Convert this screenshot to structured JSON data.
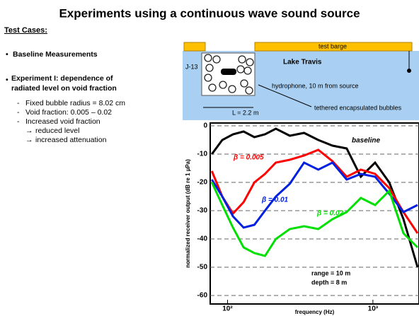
{
  "slide": {
    "title": "Experiments using a continuous wave sound source",
    "subtitle": "Test Cases:",
    "items": [
      "Baseline Measurements",
      "Experiment I:  dependence of radiated level on void fraction"
    ],
    "subitems": [
      "Fixed bubble radius = 8.02 cm",
      "Void fraction: 0.005 – 0.02",
      "Increased void fraction"
    ],
    "effects": [
      "reduced level",
      "increased attenuation"
    ]
  },
  "diagram": {
    "barge": "test barge",
    "lake": "Lake Travis",
    "source": "J-13",
    "hydrophone": "hydrophone, 10 m from source",
    "bubbles": "tethered encapsulated bubbles",
    "length": "L = 2.2 m"
  },
  "chart_data": {
    "type": "line",
    "xlabel": "frequency (Hz)",
    "ylabel": "normalized receiver output (dB re 1 µPa)",
    "log_x": true,
    "grid": true,
    "x": [
      78,
      92,
      109,
      129,
      153,
      181,
      215,
      268,
      336,
      421,
      527,
      660,
      826,
      1035,
      1295,
      1622,
      2029
    ],
    "series": [
      {
        "name": "baseline",
        "color": "#000000",
        "values": [
          -10,
          -5,
          -3,
          -2,
          -4,
          -3,
          -1,
          -3.5,
          -2.5,
          -5,
          -7,
          -8,
          -18,
          -13,
          -20,
          -33,
          -50
        ]
      },
      {
        "name": "β = 0.005",
        "color": "#ff0000",
        "values": [
          -16,
          -25,
          -31,
          -27,
          -20,
          -17,
          -13,
          -12,
          -10.5,
          -8.5,
          -12.5,
          -18,
          -15.5,
          -17,
          -22,
          -30.5,
          -38
        ]
      },
      {
        "name": "β = 0.01",
        "color": "#0020e0",
        "values": [
          -19,
          -25,
          -32,
          -36,
          -35,
          -30,
          -25,
          -20.5,
          -13,
          -15.5,
          -13,
          -19,
          -17,
          -18,
          -24,
          -30.5,
          -28
        ]
      },
      {
        "name": "β = 0.02",
        "color": "#00e000",
        "values": [
          -20,
          -28,
          -36,
          -43,
          -45,
          -46,
          -40,
          -36.5,
          -35.5,
          -36.5,
          -33,
          -30.5,
          -25.5,
          -28,
          -23,
          -38,
          -43
        ]
      }
    ],
    "annotations": [
      "range = 10 m",
      "depth = 8 m"
    ],
    "xlim": [
      76,
      2075
    ],
    "xticks": [
      {
        "value": 100,
        "label": "10²"
      },
      {
        "value": 1000,
        "label": "10³"
      }
    ],
    "ylim": [
      -63,
      1
    ],
    "yticks": [
      0,
      -10,
      -20,
      -30,
      -40,
      -50,
      -60
    ]
  }
}
